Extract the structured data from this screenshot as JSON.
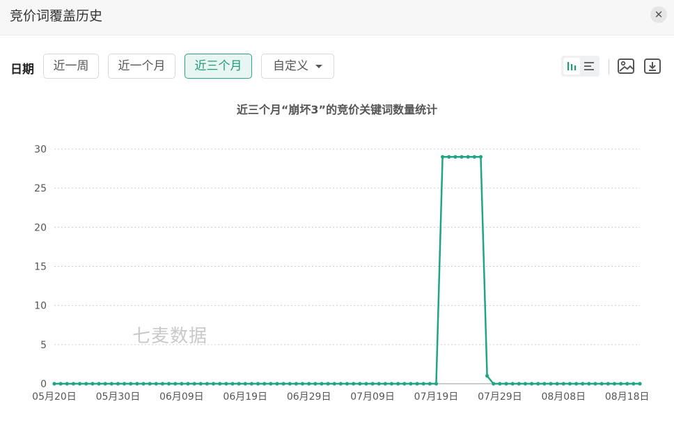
{
  "dialog": {
    "title": "竞价词覆盖历史",
    "close_glyph": "✕"
  },
  "toolbar": {
    "date_label": "日期",
    "range_buttons": [
      "近一周",
      "近一个月",
      "近三个月"
    ],
    "active_range": "近三个月",
    "custom_label": "自定义"
  },
  "icons": {
    "view_bar": "bar-chart-icon",
    "view_list": "list-icon",
    "image": "image-icon",
    "download": "download-icon"
  },
  "colors": {
    "accent": "#1f9b7c",
    "series": "#21a386",
    "grid": "#cccccc"
  },
  "watermark": "七麦数据",
  "chart_data": {
    "type": "line",
    "title": "近三个月“崩坏3”的竞价关键词数量统计",
    "xlabel": "",
    "ylabel": "",
    "ylim": [
      0,
      30
    ],
    "y_ticks": [
      0,
      5,
      10,
      15,
      20,
      25,
      30
    ],
    "grid": true,
    "x_tick_labels": [
      "05月20日",
      "05月30日",
      "06月09日",
      "06月19日",
      "06月29日",
      "07月09日",
      "07月19日",
      "07月29日",
      "08月08日",
      "08月18日"
    ],
    "start_date": "2023-05-20",
    "series": [
      {
        "values": [
          0,
          0,
          0,
          0,
          0,
          0,
          0,
          0,
          0,
          0,
          0,
          0,
          0,
          0,
          0,
          0,
          0,
          0,
          0,
          0,
          0,
          0,
          0,
          0,
          0,
          0,
          0,
          0,
          0,
          0,
          0,
          0,
          0,
          0,
          0,
          0,
          0,
          0,
          0,
          0,
          0,
          0,
          0,
          0,
          0,
          0,
          0,
          0,
          0,
          0,
          0,
          0,
          0,
          0,
          0,
          0,
          0,
          0,
          0,
          0,
          0,
          29,
          29,
          29,
          29,
          29,
          29,
          29,
          1,
          0,
          0,
          0,
          0,
          0,
          0,
          0,
          0,
          0,
          0,
          0,
          0,
          0,
          0,
          0,
          0,
          0,
          0,
          0,
          0,
          0,
          0,
          0,
          0
        ]
      }
    ]
  }
}
